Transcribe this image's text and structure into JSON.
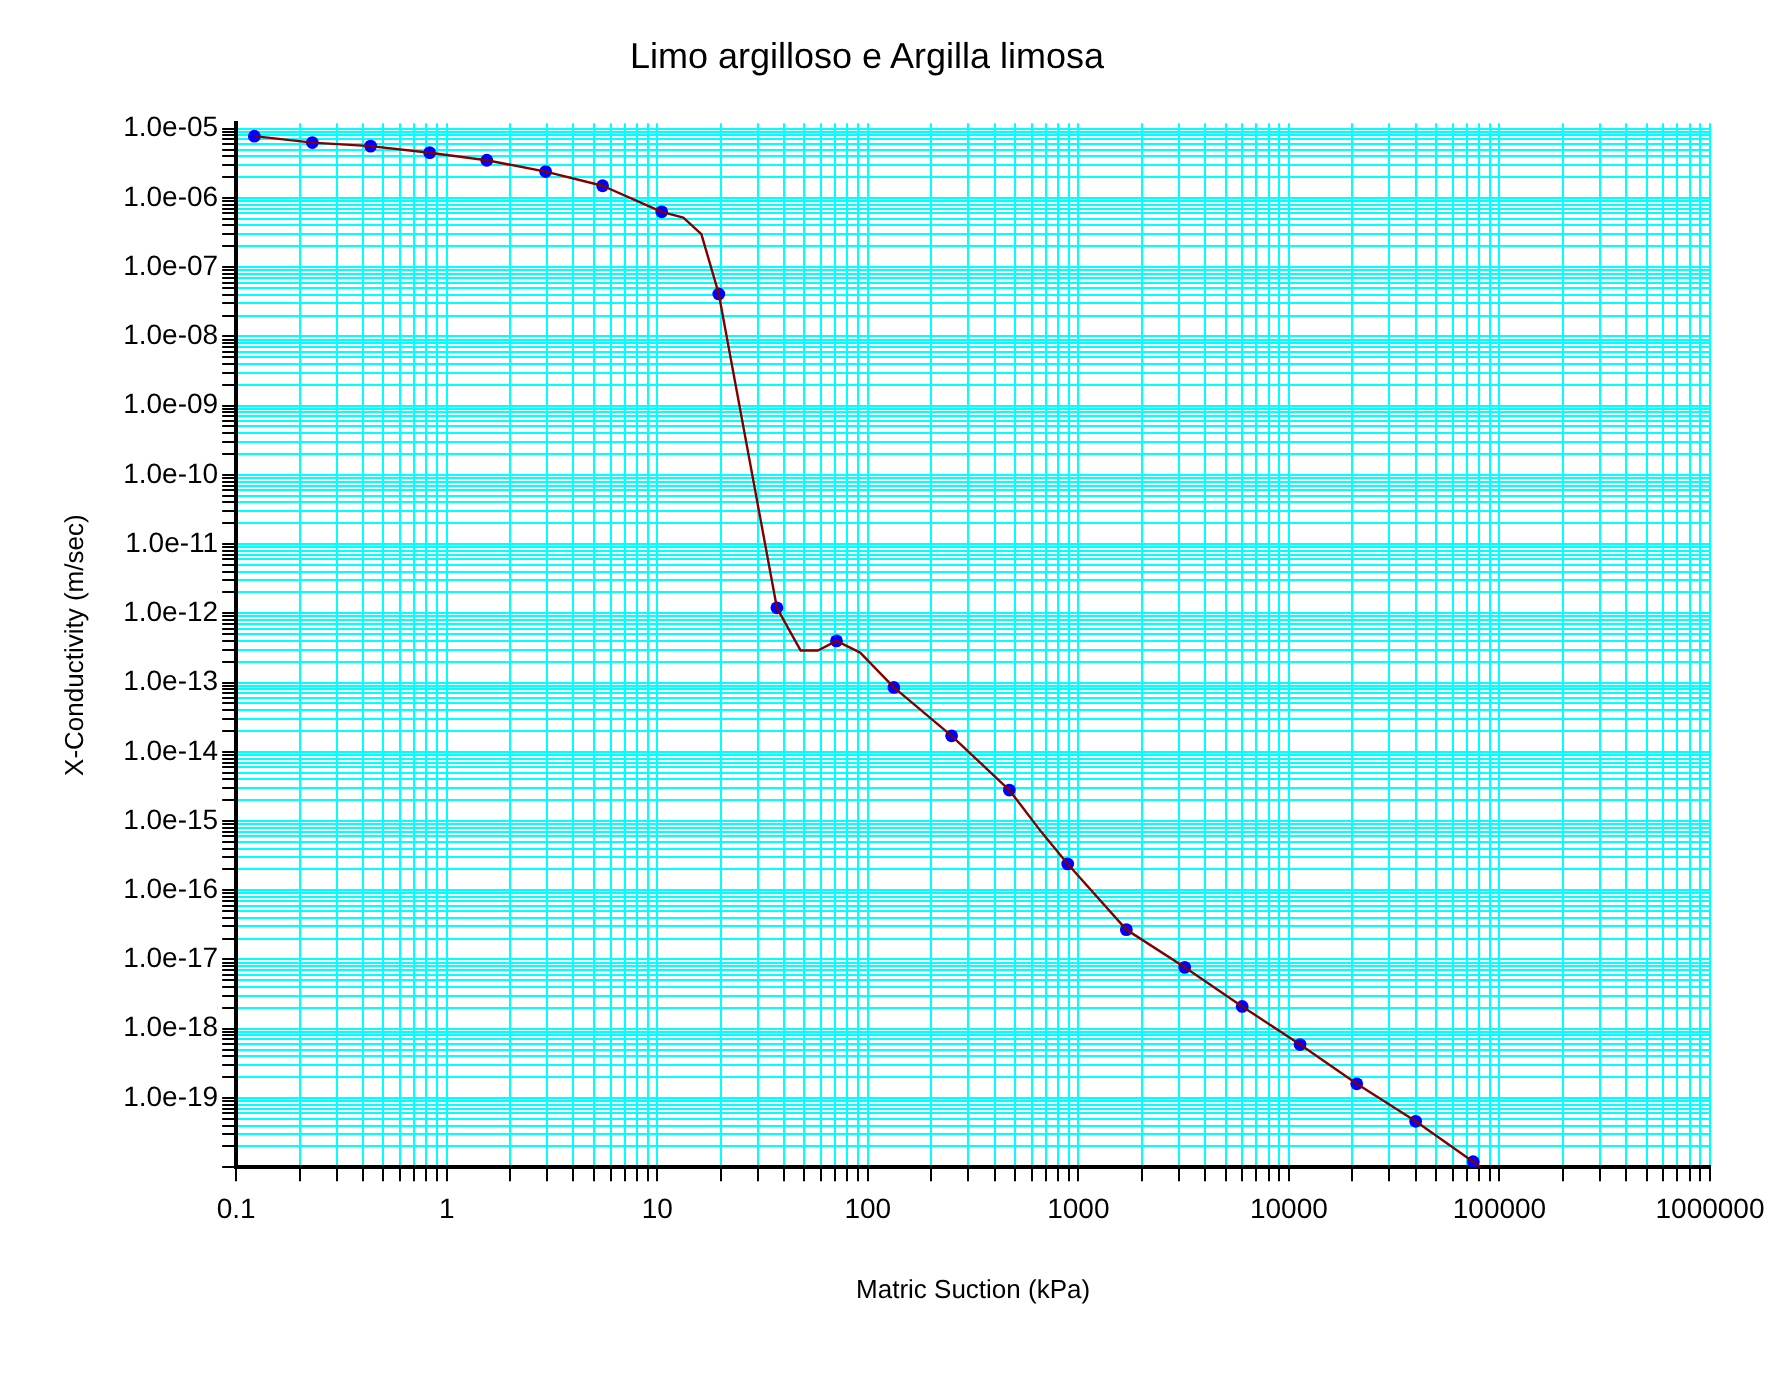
{
  "chart_data": {
    "type": "line",
    "title": "Limo argilloso e Argilla limosa",
    "xlabel": "Matric Suction (kPa)",
    "ylabel": "X-Conductivity (m/sec)",
    "log": "xy",
    "grid": true,
    "xlim": [
      0.1,
      1000000
    ],
    "ylim": [
      1e-20,
      1.2e-05
    ],
    "xticks": [
      0.1,
      {
        "value": 0.2,
        "label": null
      },
      {
        "value": 0.3,
        "label": null
      },
      {
        "value": 0.4,
        "label": null
      },
      {
        "value": 0.5,
        "label": null
      },
      {
        "value": 0.6,
        "label": null
      },
      {
        "value": 0.7,
        "label": null
      },
      {
        "value": 0.8,
        "label": null
      },
      {
        "value": 0.9,
        "label": null
      },
      1,
      {
        "value": 2,
        "label": null
      },
      {
        "value": 3,
        "label": null
      },
      {
        "value": 4,
        "label": null
      },
      {
        "value": 5,
        "label": null
      },
      {
        "value": 6,
        "label": null
      },
      {
        "value": 7,
        "label": null
      },
      {
        "value": 8,
        "label": null
      },
      {
        "value": 9,
        "label": null
      },
      10,
      {
        "value": 20,
        "label": null
      },
      {
        "value": 30,
        "label": null
      },
      {
        "value": 40,
        "label": null
      },
      {
        "value": 50,
        "label": null
      },
      {
        "value": 60,
        "label": null
      },
      {
        "value": 70,
        "label": null
      },
      {
        "value": 80,
        "label": null
      },
      {
        "value": 90,
        "label": null
      },
      100,
      {
        "value": 200,
        "label": null
      },
      {
        "value": 300,
        "label": null
      },
      {
        "value": 400,
        "label": null
      },
      {
        "value": 500,
        "label": null
      },
      {
        "value": 600,
        "label": null
      },
      {
        "value": 700,
        "label": null
      },
      {
        "value": 800,
        "label": null
      },
      {
        "value": 900,
        "label": null
      },
      1000,
      {
        "value": 2000,
        "label": null
      },
      {
        "value": 3000,
        "label": null
      },
      {
        "value": 4000,
        "label": null
      },
      {
        "value": 5000,
        "label": null
      },
      {
        "value": 6000,
        "label": null
      },
      {
        "value": 7000,
        "label": null
      },
      {
        "value": 8000,
        "label": null
      },
      {
        "value": 9000,
        "label": null
      },
      10000,
      {
        "value": 20000,
        "label": null
      },
      {
        "value": 30000,
        "label": null
      },
      {
        "value": 40000,
        "label": null
      },
      {
        "value": 50000,
        "label": null
      },
      {
        "value": 60000,
        "label": null
      },
      {
        "value": 70000,
        "label": null
      },
      {
        "value": 80000,
        "label": null
      },
      {
        "value": 90000,
        "label": null
      },
      100000,
      {
        "value": 200000,
        "label": null
      },
      {
        "value": 300000,
        "label": null
      },
      {
        "value": 400000,
        "label": null
      },
      {
        "value": 500000,
        "label": null
      },
      {
        "value": 600000,
        "label": null
      },
      {
        "value": 700000,
        "label": null
      },
      {
        "value": 800000,
        "label": null
      },
      {
        "value": 900000,
        "label": null
      },
      1000000
    ],
    "yticks": [
      {
        "value": 1e-20,
        "label": null
      },
      {
        "value": 2e-20,
        "label": null
      },
      {
        "value": 3e-20,
        "label": null
      },
      {
        "value": 4e-20,
        "label": null
      },
      {
        "value": 5e-20,
        "label": null
      },
      {
        "value": 6e-20,
        "label": null
      },
      {
        "value": 7e-20,
        "label": null
      },
      {
        "value": 8e-20,
        "label": null
      },
      {
        "value": 9e-20,
        "label": null
      },
      {
        "value": 1e-19,
        "label": "1.0e-19"
      },
      {
        "value": 2e-19,
        "label": null
      },
      {
        "value": 3e-19,
        "label": null
      },
      {
        "value": 4e-19,
        "label": null
      },
      {
        "value": 5e-19,
        "label": null
      },
      {
        "value": 6e-19,
        "label": null
      },
      {
        "value": 7e-19,
        "label": null
      },
      {
        "value": 8e-19,
        "label": null
      },
      {
        "value": 9e-19,
        "label": null
      },
      {
        "value": 1e-18,
        "label": "1.0e-18"
      },
      {
        "value": 2e-18,
        "label": null
      },
      {
        "value": 3e-18,
        "label": null
      },
      {
        "value": 4e-18,
        "label": null
      },
      {
        "value": 5e-18,
        "label": null
      },
      {
        "value": 6e-18,
        "label": null
      },
      {
        "value": 7e-18,
        "label": null
      },
      {
        "value": 8e-18,
        "label": null
      },
      {
        "value": 9e-18,
        "label": null
      },
      {
        "value": 1e-17,
        "label": "1.0e-17"
      },
      {
        "value": 2e-17,
        "label": null
      },
      {
        "value": 3e-17,
        "label": null
      },
      {
        "value": 4e-17,
        "label": null
      },
      {
        "value": 5e-17,
        "label": null
      },
      {
        "value": 6e-17,
        "label": null
      },
      {
        "value": 7e-17,
        "label": null
      },
      {
        "value": 8e-17,
        "label": null
      },
      {
        "value": 9e-17,
        "label": null
      },
      {
        "value": 1e-16,
        "label": "1.0e-16"
      },
      {
        "value": 2e-16,
        "label": null
      },
      {
        "value": 3e-16,
        "label": null
      },
      {
        "value": 4e-16,
        "label": null
      },
      {
        "value": 5e-16,
        "label": null
      },
      {
        "value": 6e-16,
        "label": null
      },
      {
        "value": 7e-16,
        "label": null
      },
      {
        "value": 8e-16,
        "label": null
      },
      {
        "value": 9e-16,
        "label": null
      },
      {
        "value": 1e-15,
        "label": "1.0e-15"
      },
      {
        "value": 2e-15,
        "label": null
      },
      {
        "value": 3e-15,
        "label": null
      },
      {
        "value": 4e-15,
        "label": null
      },
      {
        "value": 5e-15,
        "label": null
      },
      {
        "value": 6e-15,
        "label": null
      },
      {
        "value": 7e-15,
        "label": null
      },
      {
        "value": 8e-15,
        "label": null
      },
      {
        "value": 9e-15,
        "label": null
      },
      {
        "value": 1e-14,
        "label": "1.0e-14"
      },
      {
        "value": 2e-14,
        "label": null
      },
      {
        "value": 3e-14,
        "label": null
      },
      {
        "value": 4e-14,
        "label": null
      },
      {
        "value": 5e-14,
        "label": null
      },
      {
        "value": 6e-14,
        "label": null
      },
      {
        "value": 7e-14,
        "label": null
      },
      {
        "value": 8e-14,
        "label": null
      },
      {
        "value": 9e-14,
        "label": null
      },
      {
        "value": 1e-13,
        "label": "1.0e-13"
      },
      {
        "value": 2e-13,
        "label": null
      },
      {
        "value": 3e-13,
        "label": null
      },
      {
        "value": 4e-13,
        "label": null
      },
      {
        "value": 5e-13,
        "label": null
      },
      {
        "value": 6e-13,
        "label": null
      },
      {
        "value": 7e-13,
        "label": null
      },
      {
        "value": 8e-13,
        "label": null
      },
      {
        "value": 9e-13,
        "label": null
      },
      {
        "value": 1e-12,
        "label": "1.0e-12"
      },
      {
        "value": 2e-12,
        "label": null
      },
      {
        "value": 3e-12,
        "label": null
      },
      {
        "value": 4e-12,
        "label": null
      },
      {
        "value": 5e-12,
        "label": null
      },
      {
        "value": 6e-12,
        "label": null
      },
      {
        "value": 7e-12,
        "label": null
      },
      {
        "value": 8e-12,
        "label": null
      },
      {
        "value": 9e-12,
        "label": null
      },
      {
        "value": 1e-11,
        "label": "1.0e-11"
      },
      {
        "value": 2e-11,
        "label": null
      },
      {
        "value": 3e-11,
        "label": null
      },
      {
        "value": 4e-11,
        "label": null
      },
      {
        "value": 5e-11,
        "label": null
      },
      {
        "value": 6e-11,
        "label": null
      },
      {
        "value": 7e-11,
        "label": null
      },
      {
        "value": 8e-11,
        "label": null
      },
      {
        "value": 9e-11,
        "label": null
      },
      {
        "value": 1e-10,
        "label": "1.0e-10"
      },
      {
        "value": 2e-10,
        "label": null
      },
      {
        "value": 3e-10,
        "label": null
      },
      {
        "value": 4e-10,
        "label": null
      },
      {
        "value": 5e-10,
        "label": null
      },
      {
        "value": 6e-10,
        "label": null
      },
      {
        "value": 7e-10,
        "label": null
      },
      {
        "value": 8e-10,
        "label": null
      },
      {
        "value": 9e-10,
        "label": null
      },
      {
        "value": 1e-09,
        "label": "1.0e-09"
      },
      {
        "value": 2e-09,
        "label": null
      },
      {
        "value": 3e-09,
        "label": null
      },
      {
        "value": 4e-09,
        "label": null
      },
      {
        "value": 5e-09,
        "label": null
      },
      {
        "value": 6e-09,
        "label": null
      },
      {
        "value": 7e-09,
        "label": null
      },
      {
        "value": 8e-09,
        "label": null
      },
      {
        "value": 9e-09,
        "label": null
      },
      {
        "value": 1e-08,
        "label": "1.0e-08"
      },
      {
        "value": 2e-08,
        "label": null
      },
      {
        "value": 3e-08,
        "label": null
      },
      {
        "value": 4e-08,
        "label": null
      },
      {
        "value": 5e-08,
        "label": null
      },
      {
        "value": 6e-08,
        "label": null
      },
      {
        "value": 7e-08,
        "label": null
      },
      {
        "value": 8e-08,
        "label": null
      },
      {
        "value": 9e-08,
        "label": null
      },
      {
        "value": 1e-07,
        "label": "1.0e-07"
      },
      {
        "value": 2e-07,
        "label": null
      },
      {
        "value": 3e-07,
        "label": null
      },
      {
        "value": 4e-07,
        "label": null
      },
      {
        "value": 5e-07,
        "label": null
      },
      {
        "value": 6e-07,
        "label": null
      },
      {
        "value": 7e-07,
        "label": null
      },
      {
        "value": 8e-07,
        "label": null
      },
      {
        "value": 9e-07,
        "label": null
      },
      {
        "value": 1e-06,
        "label": "1.0e-06"
      },
      {
        "value": 2e-06,
        "label": null
      },
      {
        "value": 3e-06,
        "label": null
      },
      {
        "value": 4e-06,
        "label": null
      },
      {
        "value": 5e-06,
        "label": null
      },
      {
        "value": 6e-06,
        "label": null
      },
      {
        "value": 7e-06,
        "label": null
      },
      {
        "value": 8e-06,
        "label": null
      },
      {
        "value": 9e-06,
        "label": null
      },
      {
        "value": 1e-05,
        "label": "1.0e-05"
      }
    ],
    "series": [
      {
        "type": "line",
        "color": "#800000",
        "marker": "none",
        "x": [
          0.122,
          0.23,
          0.435,
          0.83,
          1.55,
          2.95,
          5.5,
          10.5,
          13.3,
          16.2,
          19.6,
          37,
          48,
          58,
          71,
          92,
          133,
          250,
          470,
          650,
          890,
          1690,
          3200,
          6000,
          11300,
          21000,
          40000,
          75000,
          81000
        ],
        "values": [
          7.8e-06,
          6.3e-06,
          5.6e-06,
          4.5e-06,
          3.5e-06,
          2.4e-06,
          1.5e-06,
          6.3e-07,
          5.2e-07,
          3e-07,
          4.1e-08,
          1.2e-12,
          2.9e-13,
          2.9e-13,
          4e-13,
          2.7e-13,
          8.5e-14,
          1.7e-14,
          2.8e-15,
          7.7e-16,
          2.4e-16,
          2.7e-17,
          7.7e-18,
          2.1e-18,
          5.9e-19,
          1.6e-19,
          4.6e-20,
          1.2e-20,
          1e-20
        ]
      },
      {
        "type": "scatter",
        "color": "#0000ff",
        "marker": "circle",
        "x": [
          0.122,
          0.23,
          0.435,
          0.83,
          1.55,
          2.95,
          5.5,
          10.5,
          19.6,
          37,
          71,
          133,
          250,
          470,
          890,
          1690,
          3200,
          6000,
          11300,
          21000,
          40000,
          75000
        ],
        "values": [
          7.8e-06,
          6.3e-06,
          5.6e-06,
          4.5e-06,
          3.5e-06,
          2.4e-06,
          1.5e-06,
          6.3e-07,
          4.1e-08,
          1.2e-12,
          4e-13,
          8.5e-14,
          1.7e-14,
          2.8e-15,
          2.4e-16,
          2.7e-17,
          7.7e-18,
          2.1e-18,
          5.9e-19,
          1.6e-19,
          4.6e-20,
          1.2e-20
        ]
      }
    ]
  }
}
